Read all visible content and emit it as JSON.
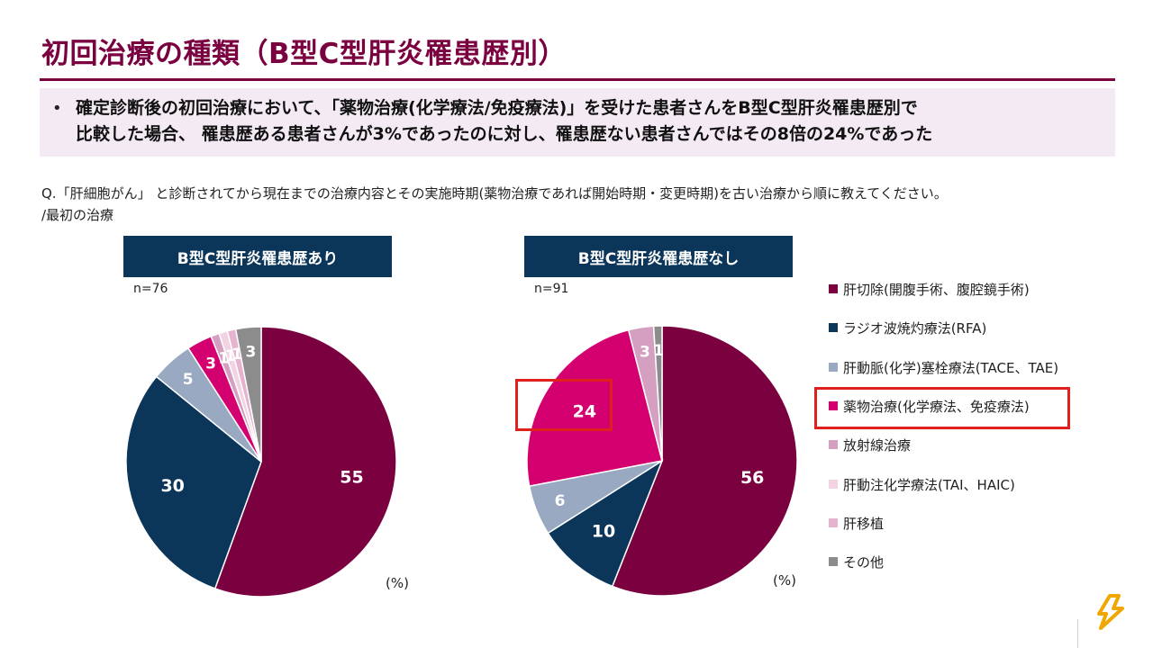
{
  "title": "初回治療の種類（B型C型肝炎罹患歴別）",
  "summary": {
    "bullet": "•",
    "line1": "確定診断後の初回治療において、「薬物治療(化学療法/免疫療法)」を受けた患者さんをB型C型肝炎罹患歴別で",
    "line2": "比較した場合、 罹患歴ある患者さんが3%であったのに対し、罹患歴ない患者さんではその8倍の24%であった"
  },
  "question": {
    "line1": "Q.「肝細胞がん」 と診断されてから現在までの治療内容とその実施時期(薬物治療であれば開始時期・変更時期)を古い治療から順に教えてください。",
    "line2": "/最初の治療"
  },
  "unit_label": "(%)",
  "colors": {
    "title": "#7a0040",
    "box": "#0b365a",
    "highlight": "#e0201e",
    "summary_bg": "#f3eaf3"
  },
  "chart_data": [
    {
      "type": "pie",
      "title": "B型C型肝炎罹患歴あり",
      "n_label": "n=76",
      "unit": "(%)",
      "categories": [
        "肝切除(開腹手術、腹腔鏡手術)",
        "ラジオ波焼灼療法(RFA)",
        "肝動脈(化学)塞栓療法(TACE、TAE)",
        "薬物治療(化学療法、免疫療法)",
        "放射線治療",
        "肝動注化学療法(TAI、HAIC)",
        "肝移植",
        "その他"
      ],
      "values": [
        55,
        30,
        5,
        3,
        1,
        1,
        1,
        3
      ],
      "labels": [
        "55",
        "30",
        "5",
        "3",
        "1",
        "1",
        "1",
        "3"
      ]
    },
    {
      "type": "pie",
      "title": "B型C型肝炎罹患歴なし",
      "n_label": "n=91",
      "unit": "(%)",
      "categories": [
        "肝切除(開腹手術、腹腔鏡手術)",
        "ラジオ波焼灼療法(RFA)",
        "肝動脈(化学)塞栓療法(TACE、TAE)",
        "薬物治療(化学療法、免疫療法)",
        "放射線治療",
        "肝動注化学療法(TAI、HAIC)",
        "肝移植",
        "その他"
      ],
      "values": [
        56,
        10,
        6,
        24,
        3,
        0,
        0,
        1
      ],
      "labels": [
        "56",
        "10",
        "6",
        "24",
        "3",
        "",
        "",
        "1"
      ],
      "highlight_category": "薬物治療(化学療法、免疫療法)"
    }
  ],
  "legend": {
    "items": [
      {
        "label": "肝切除(開腹手術、腹腔鏡手術)",
        "color": "#7a0040"
      },
      {
        "label": "ラジオ波焼灼療法(RFA)",
        "color": "#0b365a"
      },
      {
        "label": "肝動脈(化学)塞栓療法(TACE、TAE)",
        "color": "#9aa9c2"
      },
      {
        "label": "薬物治療(化学療法、免疫療法)",
        "color": "#d4006f"
      },
      {
        "label": "放射線治療",
        "color": "#d49fc0"
      },
      {
        "label": "肝動注化学療法(TAI、HAIC)",
        "color": "#f2d3e3"
      },
      {
        "label": "肝移植",
        "color": "#e6b3cf"
      },
      {
        "label": "その他",
        "color": "#8c8c8c"
      }
    ],
    "highlight_index": 3
  }
}
